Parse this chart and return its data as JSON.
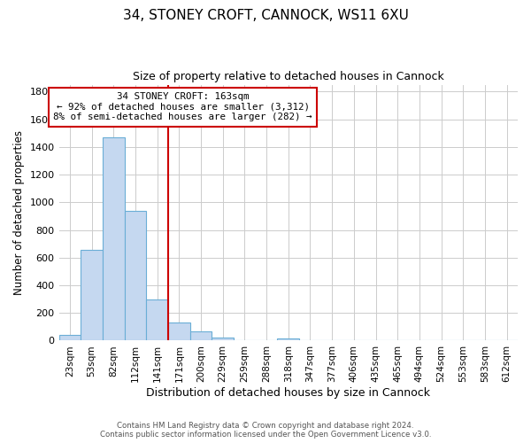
{
  "title1": "34, STONEY CROFT, CANNOCK, WS11 6XU",
  "title2": "Size of property relative to detached houses in Cannock",
  "xlabel": "Distribution of detached houses by size in Cannock",
  "ylabel": "Number of detached properties",
  "bar_labels": [
    "23sqm",
    "53sqm",
    "82sqm",
    "112sqm",
    "141sqm",
    "171sqm",
    "200sqm",
    "229sqm",
    "259sqm",
    "288sqm",
    "318sqm",
    "347sqm",
    "377sqm",
    "406sqm",
    "435sqm",
    "465sqm",
    "494sqm",
    "524sqm",
    "553sqm",
    "583sqm",
    "612sqm"
  ],
  "bar_values": [
    40,
    655,
    1470,
    935,
    295,
    130,
    65,
    25,
    5,
    0,
    15,
    0,
    0,
    0,
    0,
    0,
    0,
    0,
    0,
    0,
    0
  ],
  "bar_color": "#c5d8f0",
  "bar_edge_color": "#6aaed6",
  "vline_x": 4.5,
  "vline_color": "#cc0000",
  "annotation_text1": "34 STONEY CROFT: 163sqm",
  "annotation_text2": "← 92% of detached houses are smaller (3,312)",
  "annotation_text3": "8% of semi-detached houses are larger (282) →",
  "annotation_box_color": "#ffffff",
  "annotation_box_edge": "#cc0000",
  "ylim": [
    0,
    1850
  ],
  "yticks": [
    0,
    200,
    400,
    600,
    800,
    1000,
    1200,
    1400,
    1600,
    1800
  ],
  "footer1": "Contains HM Land Registry data © Crown copyright and database right 2024.",
  "footer2": "Contains public sector information licensed under the Open Government Licence v3.0.",
  "background_color": "#ffffff",
  "grid_color": "#cccccc"
}
